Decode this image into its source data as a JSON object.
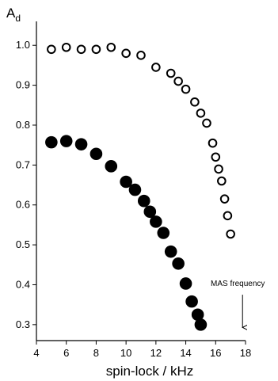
{
  "chart_data": {
    "type": "scatter",
    "ylabel_main": "A",
    "ylabel_sub": "d",
    "xlabel": "spin-lock / kHz",
    "xlim": [
      4,
      18
    ],
    "ylim": [
      0.26,
      1.06
    ],
    "x_ticks": [
      4,
      6,
      8,
      10,
      12,
      14,
      16,
      18
    ],
    "x_tick_labels": [
      "4",
      "6",
      "8",
      "10",
      "12",
      "14",
      "16",
      "18"
    ],
    "y_ticks": [
      0.3,
      0.4,
      0.5,
      0.6,
      0.7,
      0.8,
      0.9,
      1.0
    ],
    "y_tick_labels": [
      "0.3",
      "0.4",
      "0.5",
      "0.6",
      "0.7",
      "0.8",
      "0.9",
      "1.0"
    ],
    "grid": false,
    "annotation": {
      "text": "MAS frequency",
      "x": 17.8,
      "arrow_from_y": 0.375,
      "arrow_to_y": 0.293
    },
    "series": [
      {
        "marker": "open-circle",
        "color": "#000000",
        "points": [
          [
            5.0,
            0.99
          ],
          [
            6.0,
            0.995
          ],
          [
            7.0,
            0.99
          ],
          [
            8.0,
            0.99
          ],
          [
            9.0,
            0.995
          ],
          [
            10.0,
            0.98
          ],
          [
            11.0,
            0.975
          ],
          [
            12.0,
            0.945
          ],
          [
            13.0,
            0.93
          ],
          [
            13.5,
            0.91
          ],
          [
            14.0,
            0.89
          ],
          [
            14.6,
            0.858
          ],
          [
            15.0,
            0.83
          ],
          [
            15.4,
            0.805
          ],
          [
            15.8,
            0.755
          ],
          [
            16.0,
            0.72
          ],
          [
            16.2,
            0.69
          ],
          [
            16.4,
            0.66
          ],
          [
            16.6,
            0.615
          ],
          [
            16.8,
            0.573
          ],
          [
            17.0,
            0.527
          ]
        ]
      },
      {
        "marker": "filled-circle",
        "color": "#000000",
        "points": [
          [
            5.0,
            0.757
          ],
          [
            6.0,
            0.76
          ],
          [
            7.0,
            0.752
          ],
          [
            8.0,
            0.728
          ],
          [
            9.0,
            0.697
          ],
          [
            10.0,
            0.658
          ],
          [
            10.6,
            0.638
          ],
          [
            11.2,
            0.61
          ],
          [
            11.6,
            0.583
          ],
          [
            12.0,
            0.558
          ],
          [
            12.5,
            0.53
          ],
          [
            13.0,
            0.483
          ],
          [
            13.5,
            0.453
          ],
          [
            14.0,
            0.403
          ],
          [
            14.4,
            0.358
          ],
          [
            14.8,
            0.325
          ],
          [
            15.0,
            0.3
          ]
        ]
      }
    ]
  }
}
